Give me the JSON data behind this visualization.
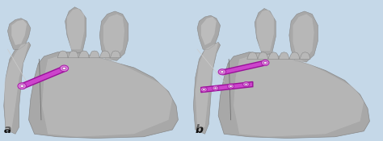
{
  "figsize": [
    4.74,
    1.75
  ],
  "dpi": 100,
  "bg_color": "#c5d8e8",
  "jaw_base": "#b0b0b0",
  "jaw_light": "#d0d0d0",
  "jaw_dark": "#888888",
  "jaw_mid": "#a8a8a8",
  "plate_color": "#cc44cc",
  "plate_edge": "#991199",
  "screw_face": "#dd88dd",
  "screw_edge": "#aa22aa",
  "label_a": "a",
  "label_b": "b",
  "label_fs": 10,
  "label_fw": "bold"
}
